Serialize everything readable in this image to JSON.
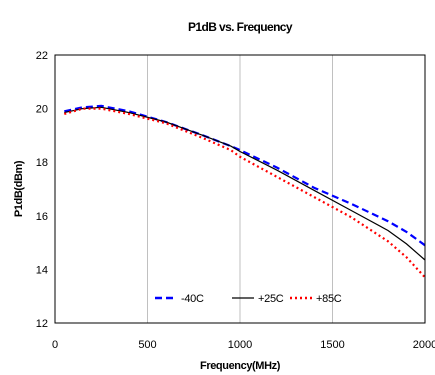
{
  "chart_data": {
    "type": "line",
    "title": "P1dB vs. Frequency",
    "xlabel": "Frequency(MHz)",
    "ylabel": "P1dB(dBm)",
    "xlim": [
      0,
      2000
    ],
    "ylim": [
      12,
      22
    ],
    "xticks": [
      "0",
      "500",
      "1000",
      "1500",
      "2000"
    ],
    "yticks": [
      "12",
      "14",
      "16",
      "18",
      "20",
      "22"
    ],
    "grid": "vertical",
    "legend": "bottom-right",
    "series": [
      {
        "name": "-40C",
        "color": "#0000ff",
        "dash": "dash",
        "x": [
          50,
          150,
          250,
          400,
          600,
          800,
          950,
          1000,
          1200,
          1400,
          1600,
          1800,
          1900,
          2000
        ],
        "y": [
          19.9,
          20.05,
          20.1,
          19.9,
          19.5,
          19.0,
          18.6,
          18.45,
          17.8,
          17.05,
          16.45,
          15.8,
          15.4,
          14.9
        ]
      },
      {
        "name": "+25C",
        "color": "#000000",
        "dash": "solid",
        "x": [
          50,
          150,
          250,
          400,
          600,
          800,
          950,
          1000,
          1200,
          1400,
          1600,
          1800,
          1900,
          2000
        ],
        "y": [
          19.85,
          20.0,
          20.05,
          19.85,
          19.5,
          19.0,
          18.6,
          18.4,
          17.7,
          16.95,
          16.2,
          15.45,
          14.95,
          14.35
        ]
      },
      {
        "name": "+85C",
        "color": "#ff0000",
        "dash": "dot",
        "x": [
          50,
          150,
          250,
          400,
          600,
          800,
          950,
          1000,
          1200,
          1400,
          1600,
          1800,
          1900,
          2000
        ],
        "y": [
          19.8,
          20.0,
          20.0,
          19.8,
          19.45,
          18.9,
          18.45,
          18.2,
          17.45,
          16.7,
          15.95,
          15.05,
          14.45,
          13.7
        ]
      }
    ]
  }
}
